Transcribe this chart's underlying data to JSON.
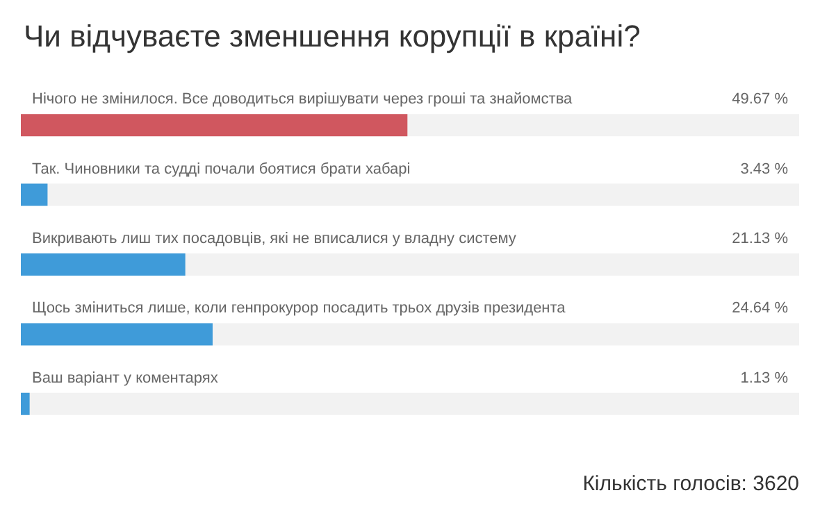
{
  "chart_data": {
    "type": "bar",
    "orientation": "horizontal",
    "title": "Чи відчуваєте зменшення корупції в країні?",
    "categories": [
      "Нічого не змінилося. Все доводиться вирішувати через гроші та знайомства",
      "Так. Чиновники та судді почали боятися брати хабарі",
      "Викривають лиш тих посадовців, які не вписалися у владну систему",
      "Щось зміниться лише, коли генпрокурор посадить трьох друзів президента",
      "Ваш варіант у коментарях"
    ],
    "values": [
      49.67,
      3.43,
      21.13,
      24.64,
      1.13
    ],
    "value_labels": [
      "49.67 %",
      "3.43 %",
      "21.13 %",
      "24.64 %",
      "1.13 %"
    ],
    "colors": [
      "#d0575f",
      "#3f9bd9",
      "#3f9bd9",
      "#3f9bd9",
      "#3f9bd9"
    ],
    "xlim": [
      0,
      100
    ],
    "tick_labels": false,
    "annotations": [
      "Кількість голосів: 3620"
    ]
  }
}
